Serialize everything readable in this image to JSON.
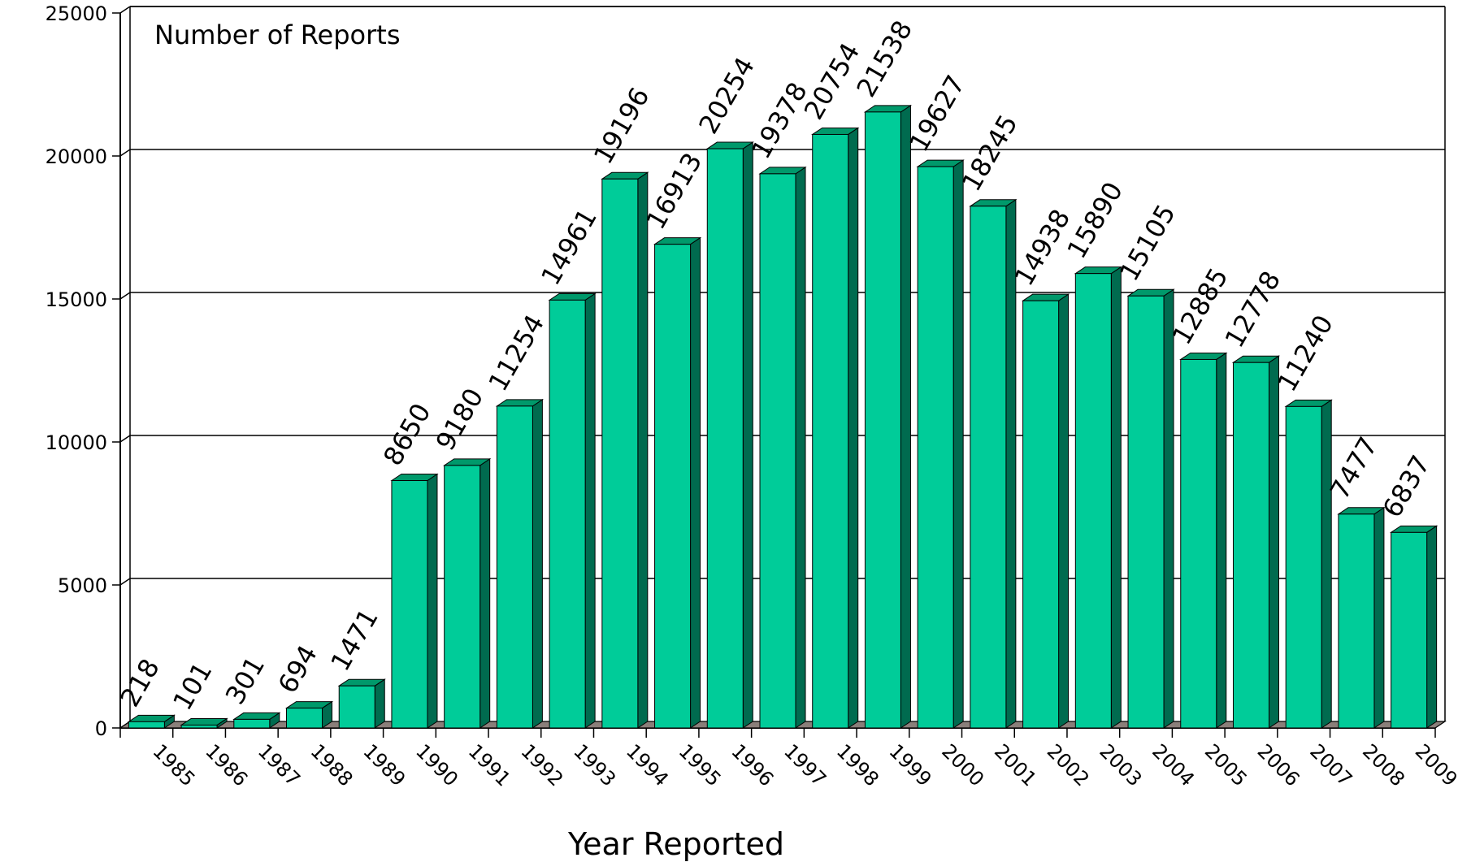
{
  "colors": {
    "bar_front": "#00CC99",
    "bar_top": "#00996B",
    "bar_side": "#006B4F",
    "floor": "#8A7F7A",
    "grid": "#000000"
  },
  "chart_data": {
    "type": "bar",
    "title": "",
    "ylabel": "Number of Reports",
    "xlabel": "Year Reported",
    "ylim": [
      0,
      25000
    ],
    "yticks": [
      0,
      5000,
      10000,
      15000,
      20000,
      25000
    ],
    "grid": true,
    "legend": "none",
    "categories": [
      "1985",
      "1986",
      "1987",
      "1988",
      "1989",
      "1990",
      "1991",
      "1992",
      "1993",
      "1994",
      "1995",
      "1996",
      "1997",
      "1998",
      "1999",
      "2000",
      "2001",
      "2002",
      "2003",
      "2004",
      "2005",
      "2006",
      "2007",
      "2008",
      "2009"
    ],
    "values": [
      218,
      101,
      301,
      694,
      1471,
      8650,
      9180,
      11254,
      14961,
      19196,
      16913,
      20254,
      19378,
      20754,
      21538,
      19627,
      18245,
      14938,
      15890,
      15105,
      12885,
      12778,
      11240,
      7477,
      6837
    ]
  }
}
